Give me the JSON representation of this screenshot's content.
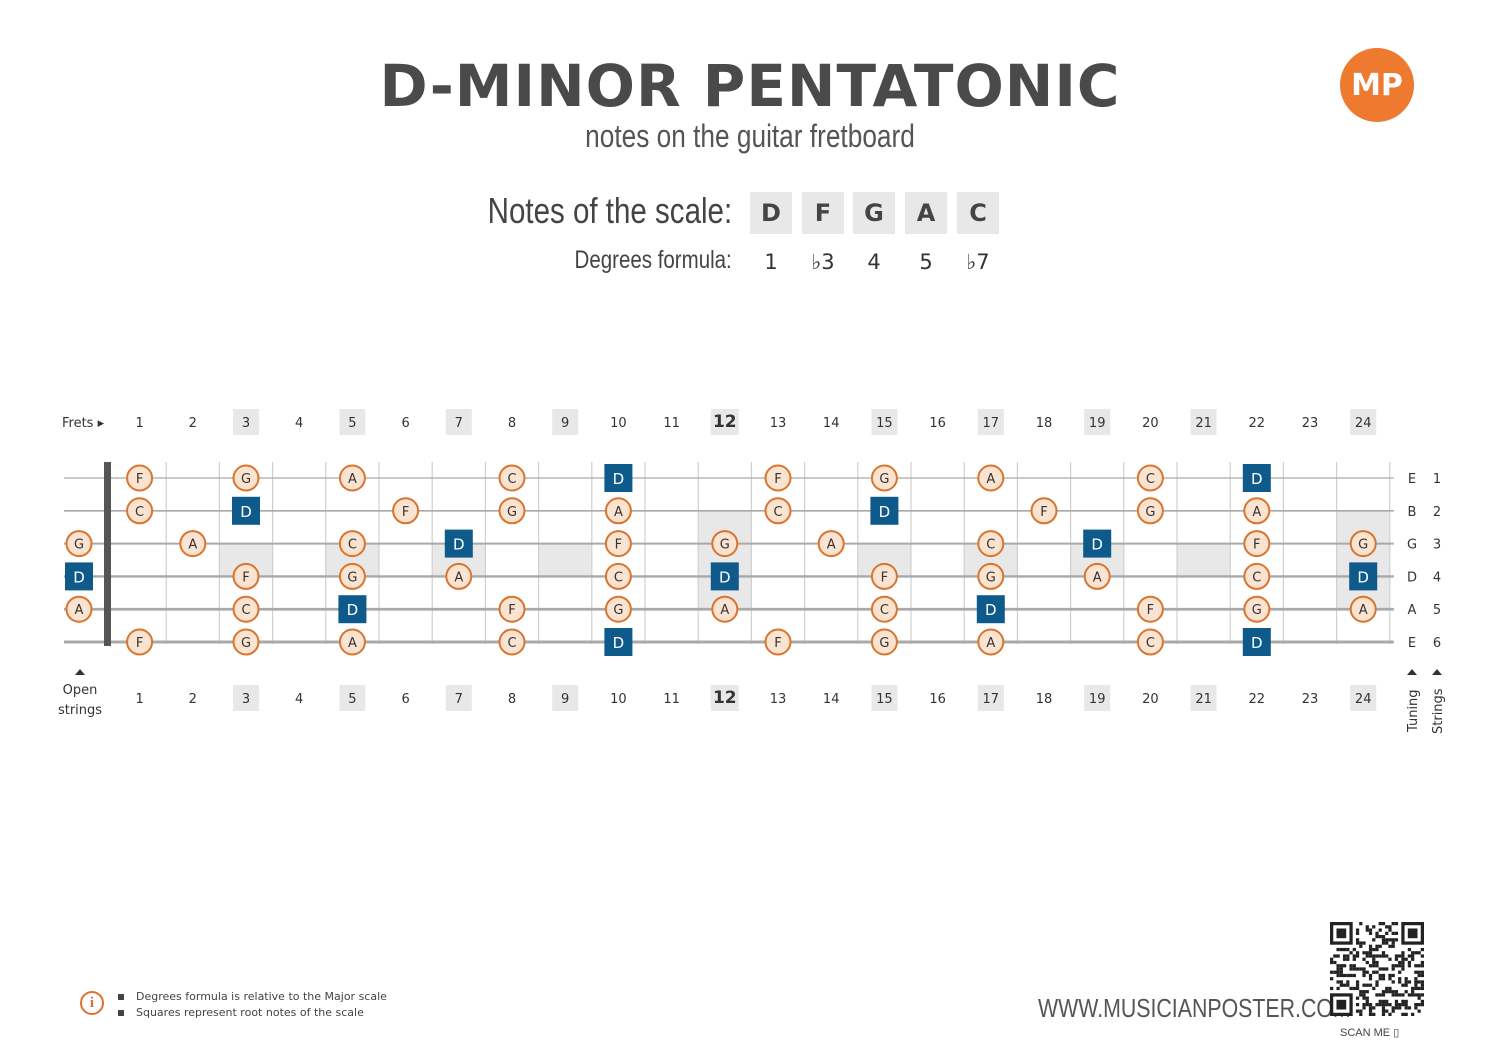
{
  "title": "D-MINOR PENTATONIC",
  "subtitle": "notes on the guitar fretboard",
  "logo_text": "MP",
  "notes_label": "Notes of the scale:",
  "degrees_label": "Degrees formula:",
  "scale_notes": [
    "D",
    "F",
    "G",
    "A",
    "C"
  ],
  "degrees": [
    "1",
    "♭3",
    "4",
    "5",
    "♭7"
  ],
  "frets_label": "Frets ▸",
  "open_strings_label": [
    "Open",
    "strings"
  ],
  "tuning_label": "Tuning",
  "strings_label": "Strings",
  "fret_numbers": [
    "1",
    "2",
    "3",
    "4",
    "5",
    "6",
    "7",
    "8",
    "9",
    "10",
    "11",
    "12",
    "13",
    "14",
    "15",
    "16",
    "17",
    "18",
    "19",
    "20",
    "21",
    "22",
    "23",
    "24"
  ],
  "marked_frets": [
    3,
    5,
    7,
    9,
    12,
    15,
    17,
    19,
    21,
    24
  ],
  "strings": [
    {
      "tuning": "E",
      "number": "1",
      "open_note": "",
      "open_root": false
    },
    {
      "tuning": "B",
      "number": "2",
      "open_note": "",
      "open_root": false
    },
    {
      "tuning": "G",
      "number": "3",
      "open_note": "G",
      "open_root": false
    },
    {
      "tuning": "D",
      "number": "4",
      "open_note": "D",
      "open_root": true
    },
    {
      "tuning": "A",
      "number": "5",
      "open_note": "A",
      "open_root": false
    },
    {
      "tuning": "E",
      "number": "6",
      "open_note": "",
      "open_root": false
    }
  ],
  "fretboard_notes": [
    {
      "string": 1,
      "fret": 1,
      "note": "F",
      "root": false
    },
    {
      "string": 1,
      "fret": 3,
      "note": "G",
      "root": false
    },
    {
      "string": 1,
      "fret": 5,
      "note": "A",
      "root": false
    },
    {
      "string": 1,
      "fret": 8,
      "note": "C",
      "root": false
    },
    {
      "string": 1,
      "fret": 10,
      "note": "D",
      "root": true
    },
    {
      "string": 1,
      "fret": 13,
      "note": "F",
      "root": false
    },
    {
      "string": 1,
      "fret": 15,
      "note": "G",
      "root": false
    },
    {
      "string": 1,
      "fret": 17,
      "note": "A",
      "root": false
    },
    {
      "string": 1,
      "fret": 20,
      "note": "C",
      "root": false
    },
    {
      "string": 1,
      "fret": 22,
      "note": "D",
      "root": true
    },
    {
      "string": 2,
      "fret": 1,
      "note": "C",
      "root": false
    },
    {
      "string": 2,
      "fret": 3,
      "note": "D",
      "root": true
    },
    {
      "string": 2,
      "fret": 6,
      "note": "F",
      "root": false
    },
    {
      "string": 2,
      "fret": 8,
      "note": "G",
      "root": false
    },
    {
      "string": 2,
      "fret": 10,
      "note": "A",
      "root": false
    },
    {
      "string": 2,
      "fret": 13,
      "note": "C",
      "root": false
    },
    {
      "string": 2,
      "fret": 15,
      "note": "D",
      "root": true
    },
    {
      "string": 2,
      "fret": 18,
      "note": "F",
      "root": false
    },
    {
      "string": 2,
      "fret": 20,
      "note": "G",
      "root": false
    },
    {
      "string": 2,
      "fret": 22,
      "note": "A",
      "root": false
    },
    {
      "string": 3,
      "fret": 2,
      "note": "A",
      "root": false
    },
    {
      "string": 3,
      "fret": 5,
      "note": "C",
      "root": false
    },
    {
      "string": 3,
      "fret": 7,
      "note": "D",
      "root": true
    },
    {
      "string": 3,
      "fret": 10,
      "note": "F",
      "root": false
    },
    {
      "string": 3,
      "fret": 12,
      "note": "G",
      "root": false
    },
    {
      "string": 3,
      "fret": 14,
      "note": "A",
      "root": false
    },
    {
      "string": 3,
      "fret": 17,
      "note": "C",
      "root": false
    },
    {
      "string": 3,
      "fret": 19,
      "note": "D",
      "root": true
    },
    {
      "string": 3,
      "fret": 22,
      "note": "F",
      "root": false
    },
    {
      "string": 3,
      "fret": 24,
      "note": "G",
      "root": false
    },
    {
      "string": 4,
      "fret": 3,
      "note": "F",
      "root": false
    },
    {
      "string": 4,
      "fret": 5,
      "note": "G",
      "root": false
    },
    {
      "string": 4,
      "fret": 7,
      "note": "A",
      "root": false
    },
    {
      "string": 4,
      "fret": 10,
      "note": "C",
      "root": false
    },
    {
      "string": 4,
      "fret": 12,
      "note": "D",
      "root": true
    },
    {
      "string": 4,
      "fret": 15,
      "note": "F",
      "root": false
    },
    {
      "string": 4,
      "fret": 17,
      "note": "G",
      "root": false
    },
    {
      "string": 4,
      "fret": 19,
      "note": "A",
      "root": false
    },
    {
      "string": 4,
      "fret": 22,
      "note": "C",
      "root": false
    },
    {
      "string": 4,
      "fret": 24,
      "note": "D",
      "root": true
    },
    {
      "string": 5,
      "fret": 3,
      "note": "C",
      "root": false
    },
    {
      "string": 5,
      "fret": 5,
      "note": "D",
      "root": true
    },
    {
      "string": 5,
      "fret": 8,
      "note": "F",
      "root": false
    },
    {
      "string": 5,
      "fret": 10,
      "note": "G",
      "root": false
    },
    {
      "string": 5,
      "fret": 12,
      "note": "A",
      "root": false
    },
    {
      "string": 5,
      "fret": 15,
      "note": "C",
      "root": false
    },
    {
      "string": 5,
      "fret": 17,
      "note": "D",
      "root": true
    },
    {
      "string": 5,
      "fret": 20,
      "note": "F",
      "root": false
    },
    {
      "string": 5,
      "fret": 22,
      "note": "G",
      "root": false
    },
    {
      "string": 5,
      "fret": 24,
      "note": "A",
      "root": false
    },
    {
      "string": 6,
      "fret": 1,
      "note": "F",
      "root": false
    },
    {
      "string": 6,
      "fret": 3,
      "note": "G",
      "root": false
    },
    {
      "string": 6,
      "fret": 5,
      "note": "A",
      "root": false
    },
    {
      "string": 6,
      "fret": 8,
      "note": "C",
      "root": false
    },
    {
      "string": 6,
      "fret": 10,
      "note": "D",
      "root": true
    },
    {
      "string": 6,
      "fret": 13,
      "note": "F",
      "root": false
    },
    {
      "string": 6,
      "fret": 15,
      "note": "G",
      "root": false
    },
    {
      "string": 6,
      "fret": 17,
      "note": "A",
      "root": false
    },
    {
      "string": 6,
      "fret": 20,
      "note": "C",
      "root": false
    },
    {
      "string": 6,
      "fret": 22,
      "note": "D",
      "root": true
    }
  ],
  "footnotes": [
    "Degrees formula is relative to the Major scale",
    "Squares represent root notes of the scale"
  ],
  "website": "WWW.MUSICIANPOSTER.COM",
  "scan_label": "SCAN ME",
  "colors": {
    "root": "#0e5a8a",
    "note_fill": "#fbe3d2",
    "note_stroke": "#d8752f",
    "accent": "#ee7a2f",
    "marker": "#e8e8e8"
  }
}
